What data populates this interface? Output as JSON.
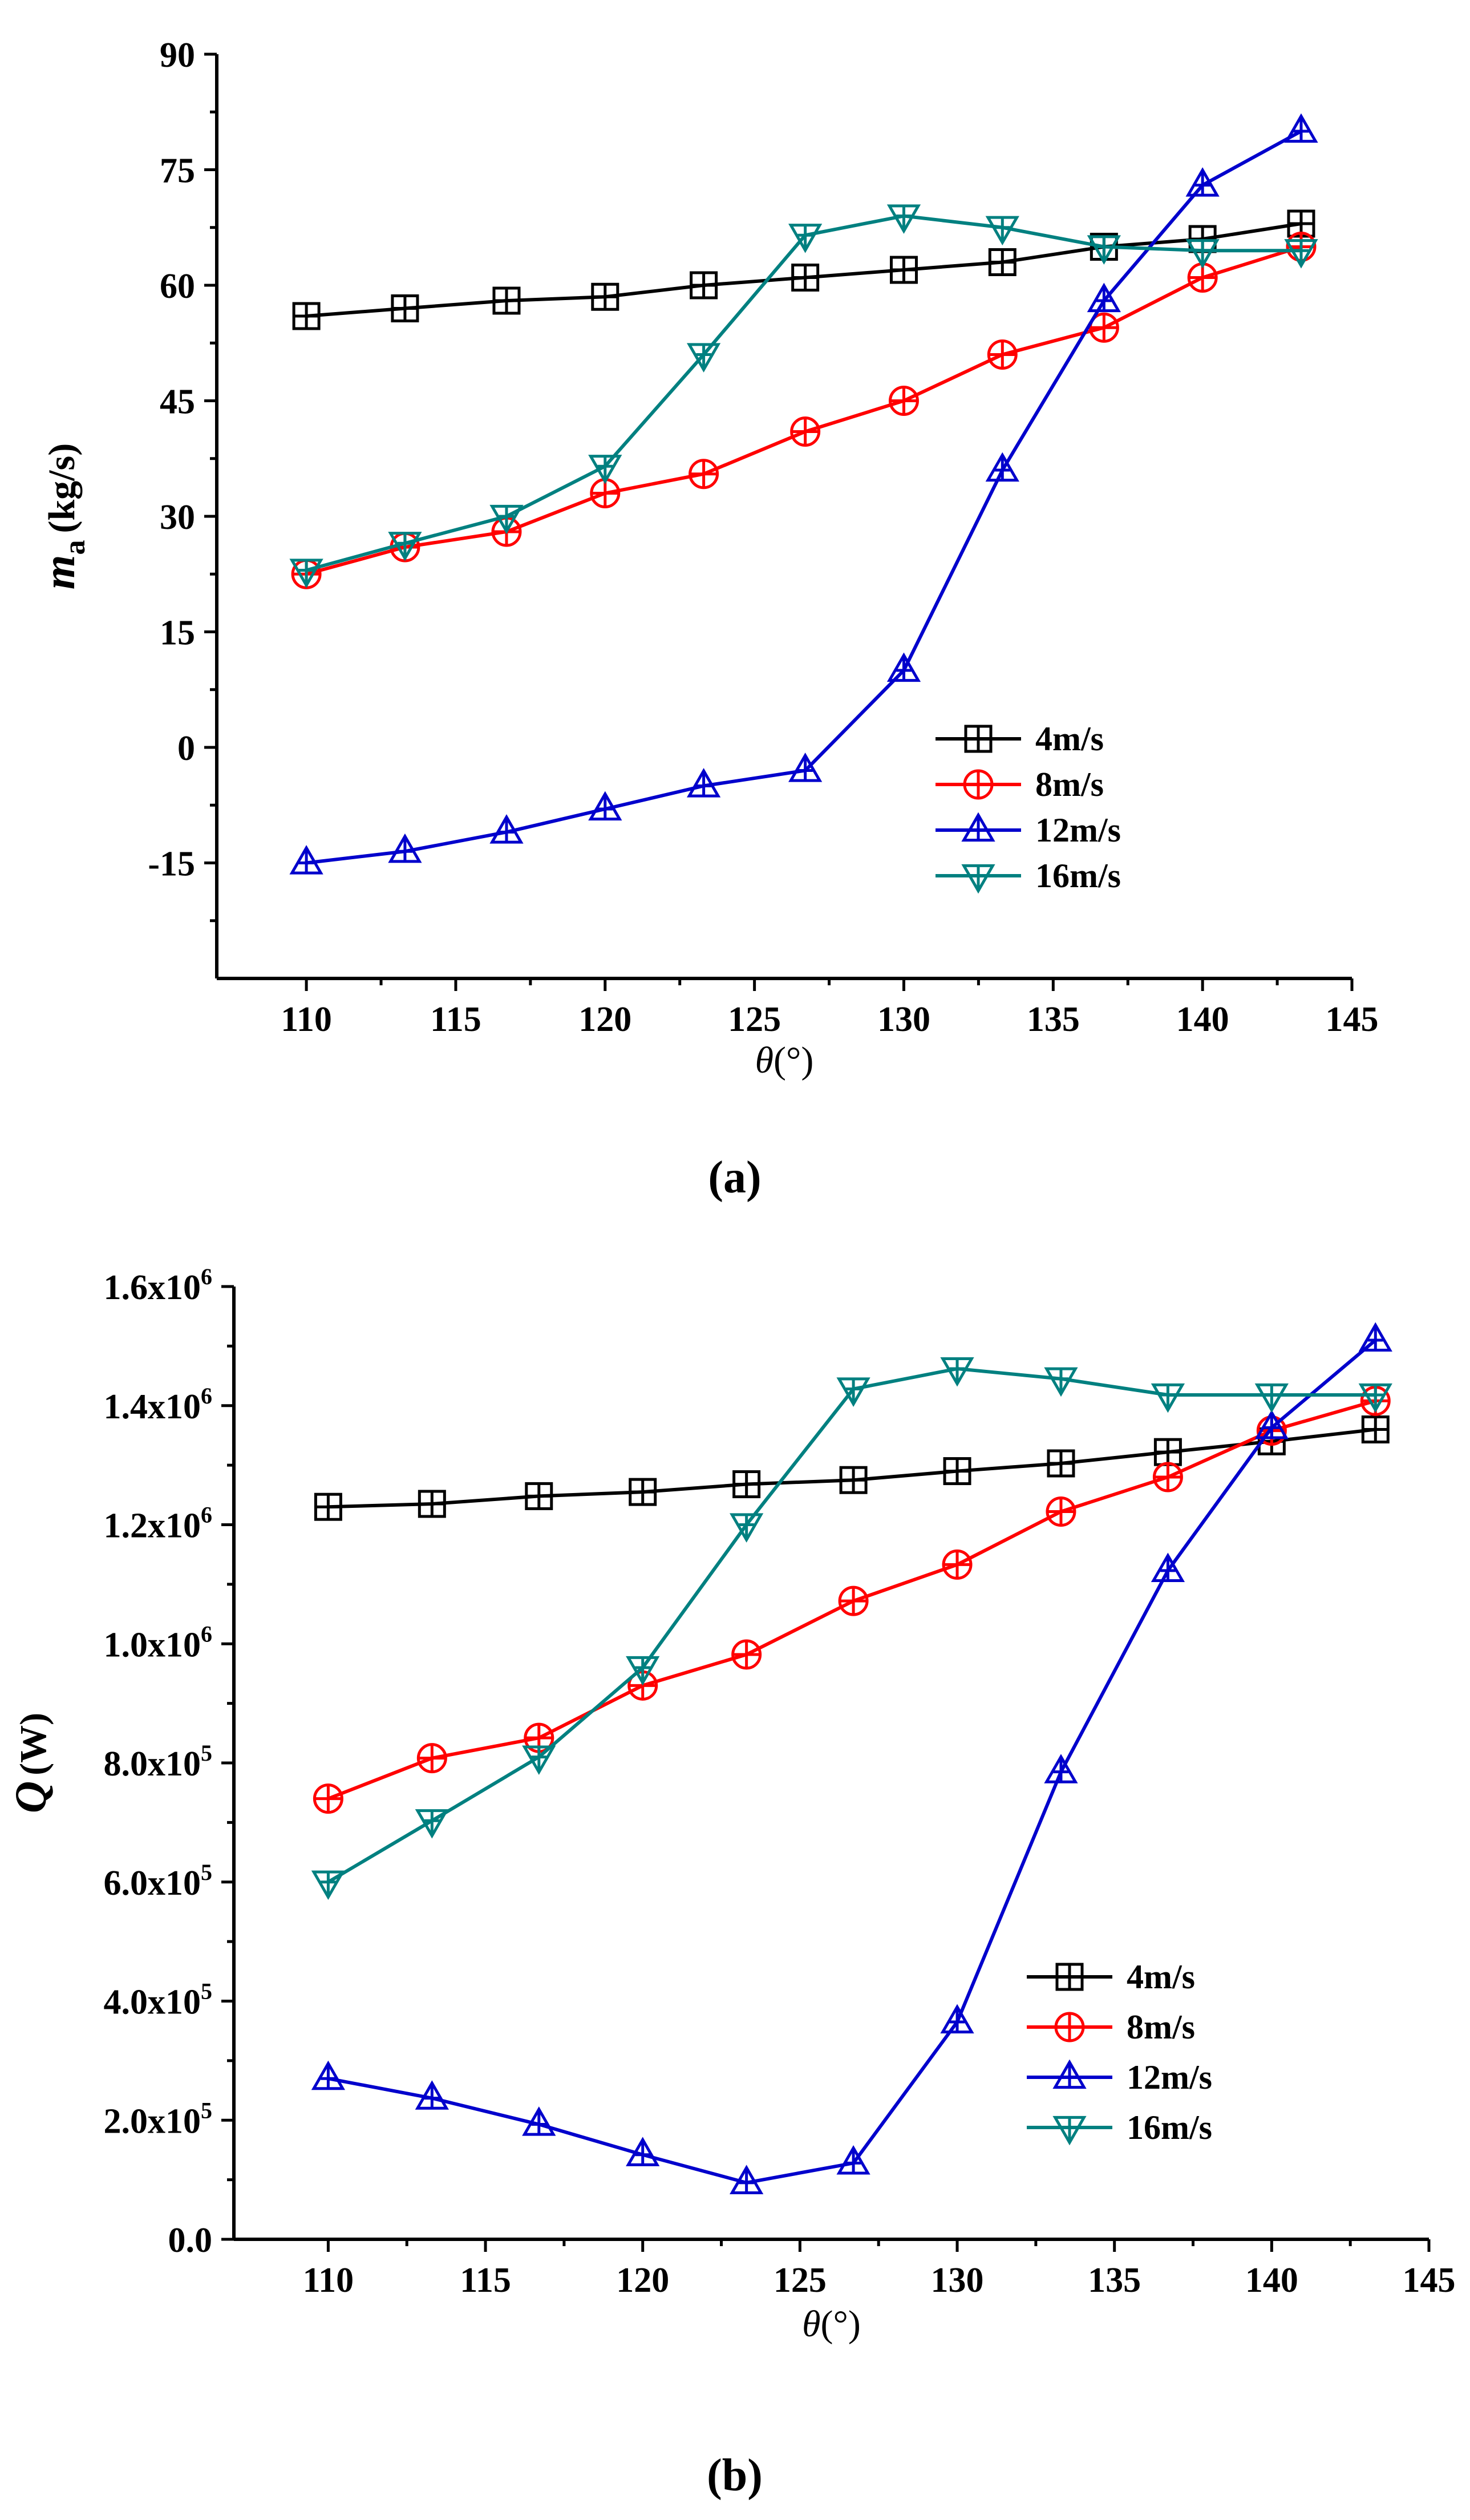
{
  "chart_data": [
    {
      "type": "line",
      "panel_label": "(a)",
      "title": "",
      "ylabel": "m",
      "ylabel_sub": "a",
      "ylabel_unit": "(kg/s)",
      "xlabel": "θ",
      "xlabel_unit": "(°)",
      "xlim": [
        107,
        145
      ],
      "ylim": [
        -30,
        90
      ],
      "xticks": [
        110,
        115,
        120,
        125,
        130,
        135,
        140,
        145
      ],
      "yticks": [
        -15,
        0,
        15,
        30,
        45,
        60,
        75,
        90
      ],
      "ytick_labels": [
        "-15",
        "0",
        "15",
        "30",
        "45",
        "60",
        "75",
        "90"
      ],
      "grid": false,
      "legend_position": "lower-right",
      "x": [
        110,
        113.3,
        116.7,
        120,
        123.3,
        126.7,
        130,
        133.3,
        136.7,
        140,
        143.3
      ],
      "series": [
        {
          "name": "4m/s",
          "color": "#000000",
          "marker": "square-cross",
          "values": [
            56,
            57,
            58,
            58.5,
            60,
            61,
            62,
            63,
            65,
            66,
            68
          ]
        },
        {
          "name": "8m/s",
          "color": "#ff0000",
          "marker": "circle-cross",
          "values": [
            22.5,
            26,
            28,
            33,
            35.5,
            41,
            45,
            51,
            54.5,
            61,
            65
          ]
        },
        {
          "name": "12m/s",
          "color": "#0000cc",
          "marker": "triangle-up",
          "values": [
            -15,
            -13.5,
            -11,
            -8,
            -5,
            -3,
            10,
            36,
            58,
            73,
            80
          ]
        },
        {
          "name": "16m/s",
          "color": "#008080",
          "marker": "triangle-down",
          "values": [
            23,
            26.5,
            30,
            36.5,
            51,
            66.5,
            69,
            67.5,
            65,
            64.5,
            64.5
          ]
        }
      ]
    },
    {
      "type": "line",
      "panel_label": "(b)",
      "title": "",
      "ylabel": "Q",
      "ylabel_unit": "(W)",
      "xlabel": "θ",
      "xlabel_unit": "(°)",
      "xlim": [
        107,
        145
      ],
      "ylim": [
        0,
        1600000
      ],
      "xticks": [
        110,
        115,
        120,
        125,
        130,
        135,
        140,
        145
      ],
      "yticks": [
        0,
        200000,
        400000,
        600000,
        800000,
        1000000,
        1200000,
        1400000,
        1600000
      ],
      "ytick_labels": [
        {
          "base": "0.0",
          "exp": ""
        },
        {
          "base": "2.0x10",
          "exp": "5"
        },
        {
          "base": "4.0x10",
          "exp": "5"
        },
        {
          "base": "6.0x10",
          "exp": "5"
        },
        {
          "base": "8.0x10",
          "exp": "5"
        },
        {
          "base": "1.0x10",
          "exp": "6"
        },
        {
          "base": "1.2x10",
          "exp": "6"
        },
        {
          "base": "1.4x10",
          "exp": "6"
        },
        {
          "base": "1.6x10",
          "exp": "6"
        }
      ],
      "grid": false,
      "legend_position": "lower-right",
      "x": [
        110,
        113.3,
        116.7,
        120,
        123.3,
        126.7,
        130,
        133.3,
        136.7,
        140,
        143.3
      ],
      "series": [
        {
          "name": "4m/s",
          "color": "#000000",
          "marker": "square-cross",
          "values": [
            1230000,
            1235000,
            1248000,
            1255000,
            1268000,
            1275000,
            1290000,
            1303000,
            1322000,
            1340000,
            1360000
          ]
        },
        {
          "name": "8m/s",
          "color": "#ff0000",
          "marker": "circle-cross",
          "values": [
            740000,
            808000,
            842000,
            930000,
            982000,
            1072000,
            1133000,
            1222000,
            1280000,
            1358000,
            1408000
          ]
        },
        {
          "name": "12m/s",
          "color": "#0000cc",
          "marker": "triangle-up",
          "values": [
            270000,
            237000,
            193000,
            142000,
            95000,
            128000,
            365000,
            785000,
            1123000,
            1363000,
            1510000
          ]
        },
        {
          "name": "16m/s",
          "color": "#008080",
          "marker": "triangle-down",
          "values": [
            600000,
            703000,
            810000,
            960000,
            1200000,
            1428000,
            1462000,
            1445000,
            1418000,
            1418000,
            1418000
          ]
        }
      ]
    }
  ]
}
